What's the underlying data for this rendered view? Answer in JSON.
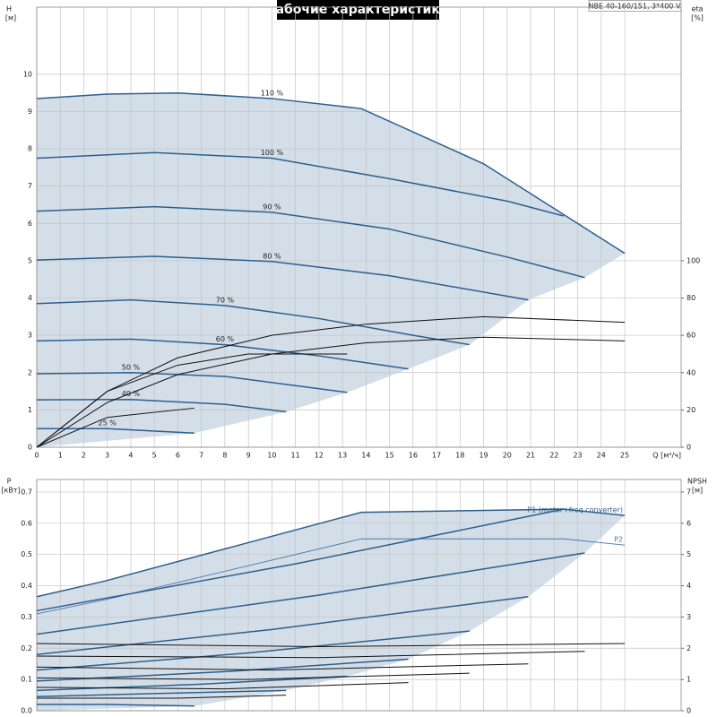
{
  "chart_data": [
    {
      "type": "line",
      "title": "Рабочие характеристики",
      "subtitle": "NBE 40-160/151, 3*400 V",
      "y_label": "H",
      "y_unit": "[м]",
      "y2_label": "eta",
      "y2_unit": "[%]",
      "x_label": "Q [м³/ч]",
      "xlim": [
        0,
        27.4
      ],
      "xticks": [
        0,
        1,
        2,
        3,
        4,
        5,
        6,
        7,
        8,
        9,
        10,
        11,
        12,
        13,
        14,
        15,
        16,
        17,
        18,
        19,
        20,
        21,
        22,
        23,
        24,
        25
      ],
      "ylim": [
        0,
        11.8
      ],
      "yticks": [
        0,
        1,
        2,
        3,
        4,
        5,
        6,
        7,
        8,
        9,
        10
      ],
      "y2lim": [
        0,
        236
      ],
      "y2ticks": [
        0,
        20,
        40,
        60,
        80,
        100
      ],
      "grid": true,
      "fill_color": "#cbd8e5",
      "series": [
        {
          "name": "110 %",
          "color": "#2c5f8e",
          "x": [
            0,
            3,
            6,
            10,
            13.8,
            19,
            25
          ],
          "values": [
            9.35,
            9.47,
            9.5,
            9.35,
            9.08,
            7.6,
            5.2
          ]
        },
        {
          "name": "100 %",
          "color": "#2c5f8e",
          "x": [
            0,
            5,
            10,
            15,
            20,
            22.4
          ],
          "values": [
            7.75,
            7.9,
            7.75,
            7.2,
            6.6,
            6.2
          ]
        },
        {
          "name": "90 %",
          "color": "#2c5f8e",
          "x": [
            0,
            5,
            10,
            15,
            20,
            23.3
          ],
          "values": [
            6.33,
            6.45,
            6.3,
            5.85,
            5.1,
            4.55
          ]
        },
        {
          "name": "80 %",
          "color": "#2c5f8e",
          "x": [
            0,
            5,
            10,
            15,
            20.9
          ],
          "values": [
            5.02,
            5.12,
            4.98,
            4.6,
            3.95
          ]
        },
        {
          "name": "70 %",
          "color": "#2c5f8e",
          "x": [
            0,
            4,
            8,
            12,
            16,
            18.4
          ],
          "values": [
            3.85,
            3.95,
            3.8,
            3.45,
            3.0,
            2.75
          ]
        },
        {
          "name": "60 %",
          "color": "#2c5f8e",
          "x": [
            0,
            4,
            8,
            12,
            15.8
          ],
          "values": [
            2.85,
            2.9,
            2.75,
            2.45,
            2.1
          ]
        },
        {
          "name": "50 %",
          "color": "#2c5f8e",
          "x": [
            0,
            4,
            8,
            13.2
          ],
          "values": [
            1.97,
            2.0,
            1.9,
            1.47
          ]
        },
        {
          "name": "40 %",
          "color": "#2c5f8e",
          "x": [
            0,
            4,
            8,
            10.6
          ],
          "values": [
            1.27,
            1.28,
            1.15,
            0.95
          ]
        },
        {
          "name": "25 %",
          "color": "#2c5f8e",
          "x": [
            0,
            3,
            6.7
          ],
          "values": [
            0.5,
            0.5,
            0.38
          ]
        },
        {
          "color": "#111111",
          "axis": "y2",
          "x": [
            0,
            3,
            6,
            10,
            14,
            19,
            25
          ],
          "values": [
            0,
            30,
            48,
            60,
            66,
            70,
            67
          ]
        },
        {
          "color": "#111111",
          "axis": "y2",
          "x": [
            0,
            3,
            6,
            10,
            14,
            19,
            25
          ],
          "values": [
            0,
            24,
            39,
            50,
            56,
            59,
            57
          ]
        },
        {
          "color": "#111111",
          "axis": "y2",
          "x": [
            0,
            3,
            6,
            9,
            13.2
          ],
          "values": [
            0,
            30,
            44,
            50,
            50
          ]
        },
        {
          "color": "#111111",
          "axis": "y2",
          "x": [
            0,
            3,
            6.7
          ],
          "values": [
            0,
            16,
            21
          ]
        }
      ]
    },
    {
      "type": "line",
      "y_label": "P",
      "y_unit": "[кВт]",
      "y2_label": "NPSH",
      "y2_unit": "[м]",
      "xlim": [
        0,
        27.4
      ],
      "ylim": [
        0,
        0.74
      ],
      "yticks": [
        {
          "value": 0,
          "label": "0.0"
        },
        0.1,
        0.2,
        0.3,
        0.4,
        0.5,
        0.6,
        0.7
      ],
      "y2lim": [
        0,
        7.4
      ],
      "y2ticks": [
        0,
        1,
        2,
        3,
        4,
        5,
        6,
        7
      ],
      "grid": true,
      "fill_color": "#cbd8e5",
      "series": [
        {
          "name": "P1 (motor+freq.converter)",
          "color": "#2c5f8e",
          "x": [
            0,
            2.9,
            13.8,
            22.4,
            25
          ],
          "values": [
            0.365,
            0.415,
            0.635,
            0.645,
            0.625
          ]
        },
        {
          "name": "P2",
          "color": "#4a7aa8",
          "x": [
            0,
            2.9,
            13.8,
            22.4,
            25
          ],
          "values": [
            0.31,
            0.355,
            0.55,
            0.55,
            0.53
          ]
        },
        {
          "color": "#2c5f8e",
          "x": [
            0,
            11,
            22.4
          ],
          "values": [
            0.32,
            0.47,
            0.645
          ]
        },
        {
          "color": "#2c5f8e",
          "x": [
            0,
            12,
            23.3
          ],
          "values": [
            0.245,
            0.37,
            0.505
          ]
        },
        {
          "color": "#2c5f8e",
          "x": [
            0,
            10,
            20.9
          ],
          "values": [
            0.18,
            0.26,
            0.365
          ]
        },
        {
          "color": "#2c5f8e",
          "x": [
            0,
            9,
            18.4
          ],
          "values": [
            0.13,
            0.185,
            0.255
          ]
        },
        {
          "color": "#2c5f8e",
          "x": [
            0,
            8,
            15.8
          ],
          "values": [
            0.095,
            0.125,
            0.165
          ]
        },
        {
          "color": "#2c5f8e",
          "x": [
            0,
            7,
            13.2
          ],
          "values": [
            0.065,
            0.085,
            0.11
          ]
        },
        {
          "color": "#2c5f8e",
          "x": [
            0,
            5,
            10.6
          ],
          "values": [
            0.045,
            0.055,
            0.065
          ]
        },
        {
          "color": "#2c5f8e",
          "x": [
            0,
            3,
            6.7
          ],
          "values": [
            0.02,
            0.02,
            0.015
          ]
        },
        {
          "color": "#111111",
          "axis": "y2",
          "x": [
            0,
            12,
            25
          ],
          "values": [
            2.15,
            2.05,
            2.15
          ]
        },
        {
          "color": "#111111",
          "axis": "y2",
          "x": [
            0,
            12,
            23.3
          ],
          "values": [
            1.75,
            1.7,
            1.9
          ]
        },
        {
          "color": "#111111",
          "axis": "y2",
          "x": [
            0,
            10,
            20.9
          ],
          "values": [
            1.4,
            1.3,
            1.5
          ]
        },
        {
          "color": "#111111",
          "axis": "y2",
          "x": [
            0,
            9,
            18.4
          ],
          "values": [
            1.05,
            1.0,
            1.2
          ]
        },
        {
          "color": "#111111",
          "axis": "y2",
          "x": [
            0,
            8,
            15.8
          ],
          "values": [
            0.75,
            0.7,
            0.9
          ]
        },
        {
          "color": "#111111",
          "axis": "y2",
          "x": [
            0,
            6,
            10.6
          ],
          "values": [
            0.4,
            0.4,
            0.5
          ]
        }
      ]
    }
  ]
}
